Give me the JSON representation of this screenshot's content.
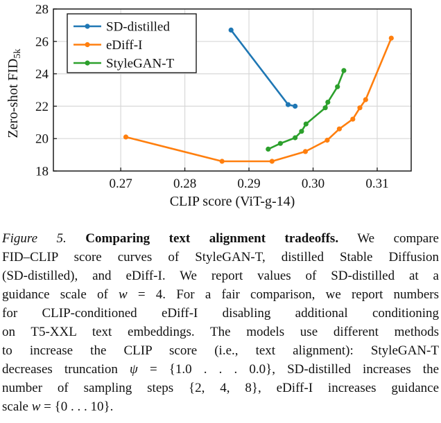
{
  "figure_label": "Figure 5.",
  "chart_data": {
    "type": "line",
    "title": "",
    "xlabel": "CLIP score (ViT-g-14)",
    "ylabel": "Zero-shot FID",
    "ylabel_subscript": "5k",
    "xlim": [
      0.2595,
      0.3153
    ],
    "ylim": [
      18,
      28
    ],
    "xticks": [
      "0.27",
      "0.28",
      "0.29",
      "0.30",
      "0.31"
    ],
    "yticks": [
      18,
      20,
      22,
      24,
      26,
      28
    ],
    "grid": true,
    "grid_color": "#d8d8d8",
    "frame_color": "#1a1a1a",
    "legend_position": "top-left",
    "series": [
      {
        "name": "SD-distilled",
        "color": "#1f77b4",
        "points": [
          [
            0.2872,
            26.7
          ],
          [
            0.2961,
            22.1
          ],
          [
            0.2972,
            22.0
          ]
        ]
      },
      {
        "name": "eDiff-I",
        "color": "#ff7f0e",
        "points": [
          [
            0.2708,
            20.1
          ],
          [
            0.2858,
            18.6
          ],
          [
            0.2936,
            18.6
          ],
          [
            0.2988,
            19.2
          ],
          [
            0.3022,
            19.9
          ],
          [
            0.3041,
            20.6
          ],
          [
            0.3062,
            21.2
          ],
          [
            0.3073,
            21.9
          ],
          [
            0.3082,
            22.4
          ],
          [
            0.3122,
            26.2
          ]
        ]
      },
      {
        "name": "StyleGAN-T",
        "color": "#2ca02c",
        "points": [
          [
            0.293,
            19.35
          ],
          [
            0.2949,
            19.7
          ],
          [
            0.2972,
            20.05
          ],
          [
            0.2982,
            20.45
          ],
          [
            0.2989,
            20.9
          ],
          [
            0.3019,
            21.9
          ],
          [
            0.3023,
            22.25
          ],
          [
            0.3038,
            23.2
          ],
          [
            0.3048,
            24.2
          ]
        ]
      }
    ]
  },
  "caption": {
    "lines": [
      [
        [
          "i",
          "Figure 5."
        ],
        [
          "n",
          " "
        ],
        [
          "b",
          "Comparing text alignment tradeoffs."
        ],
        [
          "n",
          "  We compare"
        ]
      ],
      [
        [
          "n",
          "FID–CLIP score curves of StyleGAN-T, distilled Stable Diffusion"
        ]
      ],
      [
        [
          "n",
          "(SD-distilled), and eDiff-I. We report values of SD-distilled at a"
        ]
      ],
      [
        [
          "n",
          "guidance scale of "
        ],
        [
          "m",
          "w"
        ],
        [
          "n",
          " = 4. For a fair comparison, we report numbers"
        ]
      ],
      [
        [
          "n",
          "for CLIP-conditioned eDiff-I disabling additional conditioning"
        ]
      ],
      [
        [
          "n",
          "on T5-XXL text embeddings. The models use different methods"
        ]
      ],
      [
        [
          "n",
          "to increase the CLIP score (i.e., text alignment):  StyleGAN-T"
        ]
      ],
      [
        [
          "n",
          "decreases truncation "
        ],
        [
          "m",
          "ψ"
        ],
        [
          "n",
          " = {1.0 . . . 0.0}, SD-distilled increases the"
        ]
      ],
      [
        [
          "n",
          "number of sampling steps {2, 4, 8}, eDiff-I increases guidance"
        ]
      ],
      [
        [
          "n",
          "scale "
        ],
        [
          "m",
          "w"
        ],
        [
          "n",
          " = {0 . . . 10}."
        ]
      ]
    ]
  }
}
